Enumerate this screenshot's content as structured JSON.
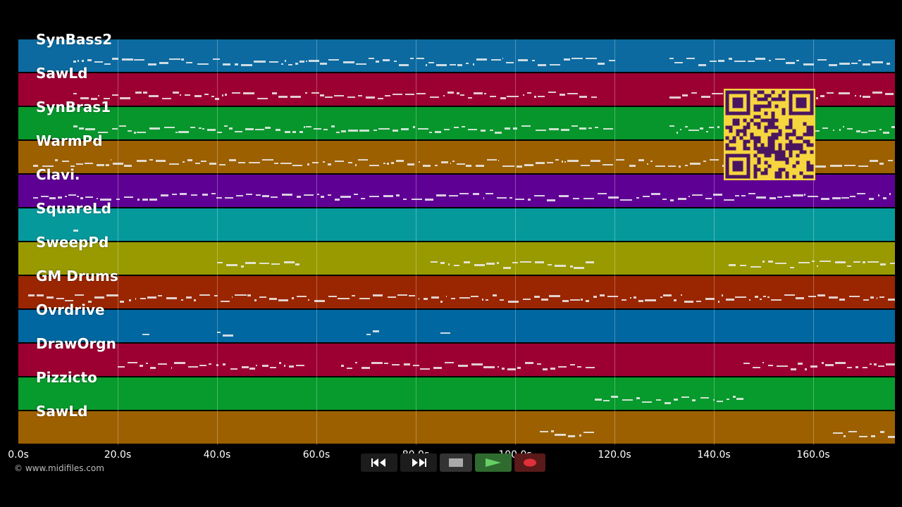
{
  "colors": {
    "background": "#000000",
    "note": "#f0f0f0",
    "qr_bg": "#f6d63e",
    "qr_fg": "#4a1560"
  },
  "tracks": [
    {
      "label": "SynBass2",
      "color": "#0c6aa0"
    },
    {
      "label": "SawLd",
      "color": "#9c0033"
    },
    {
      "label": "SynBras1",
      "color": "#07962c"
    },
    {
      "label": "WarmPd",
      "color": "#9c6000"
    },
    {
      "label": "Clavi.",
      "color": "#5f0094"
    },
    {
      "label": "SquareLd",
      "color": "#06999c"
    },
    {
      "label": "SweepPd",
      "color": "#999a00"
    },
    {
      "label": "GM Drums",
      "color": "#992600"
    },
    {
      "label": "Ovrdrive",
      "color": "#0067a0"
    },
    {
      "label": "DrawOrgn",
      "color": "#9c0033"
    },
    {
      "label": "Pizzicto",
      "color": "#079a2c"
    },
    {
      "label": "SawLd",
      "color": "#9c6000"
    }
  ],
  "timeline": {
    "ticks": [
      "0.0s",
      "20.0s",
      "40.0s",
      "60.0s",
      "80.0s",
      "100.0s",
      "120.0s",
      "140.0s",
      "160.0s"
    ],
    "tick_seconds": [
      0,
      20,
      40,
      60,
      80,
      100,
      120,
      140,
      160
    ],
    "max_seconds": 176.5
  },
  "copyright": "© www.midifiles.com",
  "transport": {
    "rewind_icon": "rewind-icon",
    "forward_icon": "fast-forward-icon",
    "stop_icon": "stop-icon",
    "play_icon": "play-icon",
    "record_icon": "record-icon"
  }
}
